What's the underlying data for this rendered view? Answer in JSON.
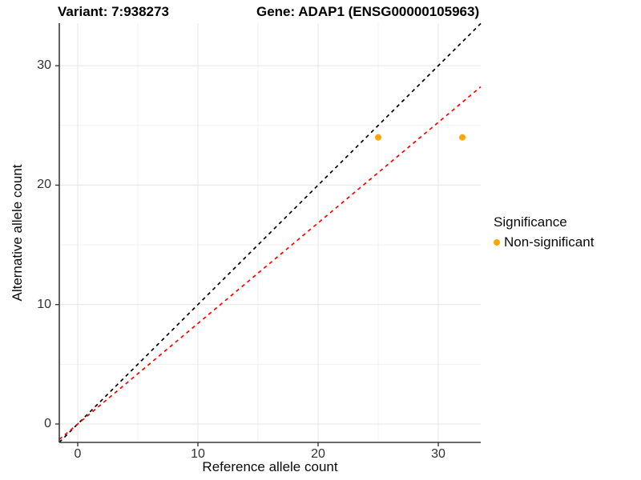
{
  "chart_data": {
    "type": "scatter",
    "title_variant": "Variant: 7:938273",
    "title_gene": "Gene: ADAP1 (ENSG00000105963)",
    "xlabel": "Reference allele count",
    "ylabel": "Alternative allele count",
    "xlim": [
      -1.533,
      33.533
    ],
    "ylim": [
      -1.54,
      33.56
    ],
    "x_major_ticks": [
      0,
      10,
      20,
      30
    ],
    "y_major_ticks": [
      0,
      10,
      20,
      30
    ],
    "x_minor_gridlines": [
      5,
      15,
      25
    ],
    "y_minor_gridlines": [
      5,
      15,
      25
    ],
    "grid": "on",
    "series": [
      {
        "name": "Non-significant",
        "color": "#FFA500",
        "points": [
          {
            "x": 25,
            "y": 24
          },
          {
            "x": 32,
            "y": 24
          }
        ]
      }
    ],
    "reference_lines": [
      {
        "name": "identity-line",
        "slope": 1.0,
        "intercept": 0,
        "color": "#000000",
        "style": "dashed"
      },
      {
        "name": "fitted-ratio-line",
        "slope": 0.842,
        "intercept": 0,
        "color": "#FF0000",
        "style": "dashed"
      }
    ],
    "legend": {
      "position": "right",
      "title": "Significance",
      "items": [
        {
          "label": "Non-significant",
          "color": "#FFA500"
        }
      ]
    },
    "colors": {
      "axis_line": "#383838",
      "major_grid": "#e4e4e4",
      "minor_grid": "#f0f0f0",
      "tick_label": "#303030"
    }
  }
}
